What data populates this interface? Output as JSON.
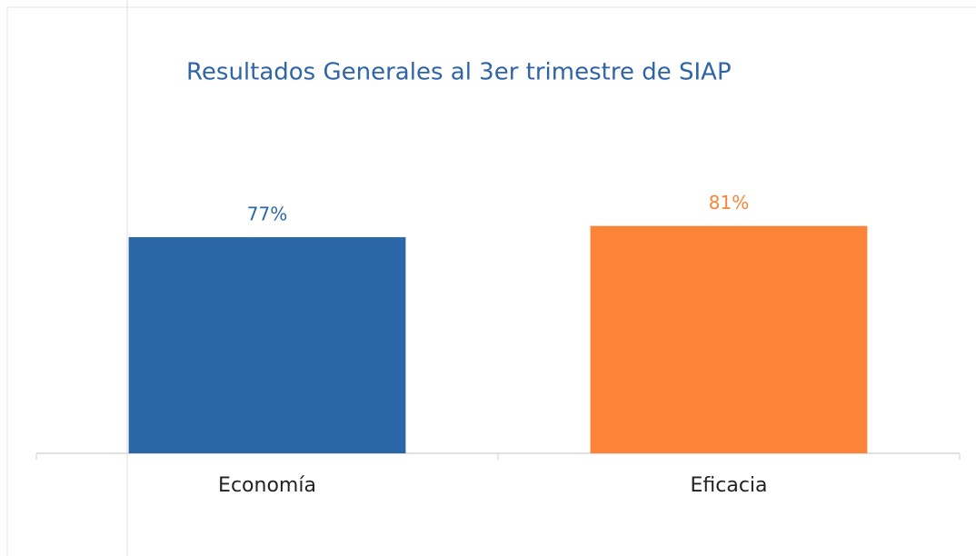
{
  "chart_data": {
    "type": "bar",
    "title": "Resultados Generales al 3er trimestre de SIAP",
    "categories": [
      "Economía",
      "Eficacia"
    ],
    "values": [
      77,
      81
    ],
    "value_labels": [
      "77%",
      "81%"
    ],
    "colors": [
      "#2b66a9",
      "#fb8438"
    ],
    "ylim": [
      0,
      100
    ]
  }
}
